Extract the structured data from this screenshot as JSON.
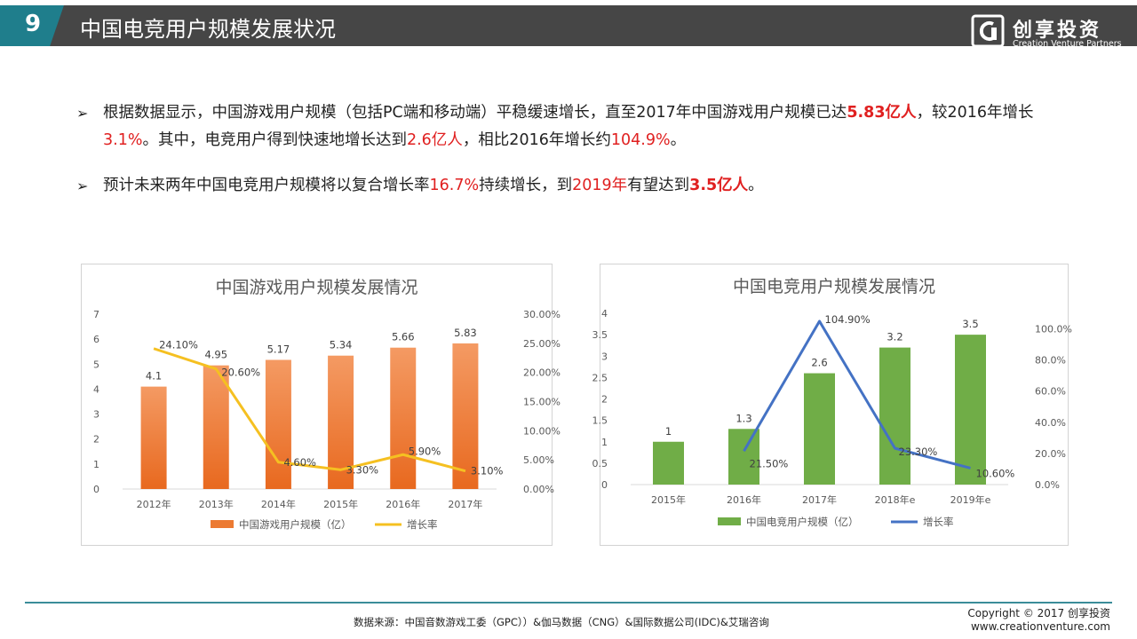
{
  "header": {
    "page_number": "9",
    "title": "中国电竞用户规模发展状况",
    "logo_name": "创享投资",
    "logo_sub": "Creation Venture Partners"
  },
  "bullets": [
    {
      "segments": [
        {
          "text": "根据数据显示，中国游戏用户规模（包括PC端和移动端）平稳缓速增长，直至2017年中国游戏用户规模已达",
          "style": "normal"
        },
        {
          "text": "5.83亿人",
          "style": "redb"
        },
        {
          "text": "，较2016年增长",
          "style": "normal"
        },
        {
          "text": "3.1%",
          "style": "red"
        },
        {
          "text": "。其中，电竞用户得到快速地增长达到",
          "style": "normal"
        },
        {
          "text": "2.6亿人",
          "style": "red"
        },
        {
          "text": "，相比2016年增长约",
          "style": "normal"
        },
        {
          "text": "104.9%",
          "style": "red"
        },
        {
          "text": "。",
          "style": "normal"
        }
      ]
    },
    {
      "segments": [
        {
          "text": "预计未来两年中国电竞用户规模将以复合增长率",
          "style": "normal"
        },
        {
          "text": "16.7%",
          "style": "red"
        },
        {
          "text": "持续增长，到",
          "style": "normal"
        },
        {
          "text": "2019年",
          "style": "red"
        },
        {
          "text": "有望达到",
          "style": "normal"
        },
        {
          "text": "3.5亿人",
          "style": "redb"
        },
        {
          "text": "。",
          "style": "normal"
        }
      ]
    }
  ],
  "chart_data": [
    {
      "type": "bar",
      "title": "中国游戏用户规模发展情况",
      "categories": [
        "2012年",
        "2013年",
        "2014年",
        "2015年",
        "2016年",
        "2017年"
      ],
      "series": [
        {
          "name": "中国游戏用户规模（亿）",
          "kind": "bar",
          "axis": "left",
          "color": "#f07a30",
          "values": [
            4.1,
            4.95,
            5.17,
            5.34,
            5.66,
            5.83
          ],
          "labels": [
            "4.1",
            "4.95",
            "5.17",
            "5.34",
            "5.66",
            "5.83"
          ]
        },
        {
          "name": "增长率",
          "kind": "line",
          "axis": "right",
          "color": "#f5c021",
          "values": [
            24.1,
            20.6,
            4.6,
            3.3,
            5.9,
            3.1
          ],
          "labels": [
            "24.10%",
            "20.60%",
            "4.60%",
            "3.30%",
            "5.90%",
            "3.10%"
          ]
        }
      ],
      "y_left": {
        "min": 0,
        "max": 7,
        "ticks": [
          "0",
          "1",
          "2",
          "3",
          "4",
          "5",
          "6",
          "7"
        ]
      },
      "y_right": {
        "min": 0,
        "max": 30,
        "ticks": [
          "0.00%",
          "5.00%",
          "10.00%",
          "15.00%",
          "20.00%",
          "25.00%",
          "30.00%"
        ]
      },
      "legend_position": "bottom",
      "grid": false
    },
    {
      "type": "bar",
      "title": "中国电竞用户规模发展情况",
      "categories": [
        "2015年",
        "2016年",
        "2017年",
        "2018年e",
        "2019年e"
      ],
      "series": [
        {
          "name": "中国电竞用户规模（亿）",
          "kind": "bar",
          "axis": "left",
          "color": "#70ad47",
          "values": [
            1,
            1.3,
            2.6,
            3.2,
            3.5
          ],
          "labels": [
            "1",
            "1.3",
            "2.6",
            "3.2",
            "3.5"
          ]
        },
        {
          "name": "增长率",
          "kind": "line",
          "axis": "right",
          "color": "#4472c4",
          "values": [
            null,
            21.5,
            104.9,
            23.3,
            10.6
          ],
          "labels": [
            "",
            "21.50%",
            "104.90%",
            "23.30%",
            "10.60%"
          ]
        }
      ],
      "y_left": {
        "min": 0,
        "max": 4,
        "ticks": [
          "0",
          "0.5",
          "1",
          "1.5",
          "2",
          "2.5",
          "3",
          "3.5",
          "4"
        ]
      },
      "y_right": {
        "min": 0,
        "max": 110,
        "ticks": [
          "0.0%",
          "20.0%",
          "40.0%",
          "60.0%",
          "80.0%",
          "100.0%"
        ],
        "tick_values": [
          0,
          20,
          40,
          60,
          80,
          100
        ]
      },
      "legend_position": "bottom",
      "grid": false
    }
  ],
  "footer": {
    "source": "数据来源：中国音数游戏工委（GPC））&伽马数据（CNG）&国际数据公司(IDC)&艾瑞咨询",
    "copyright": "Copyright © 2017 创享投资",
    "website": "www.creationventure.com"
  },
  "colors": {
    "header_bg": "#464646",
    "accent": "#1f7e8c",
    "highlight": "#e02020"
  }
}
